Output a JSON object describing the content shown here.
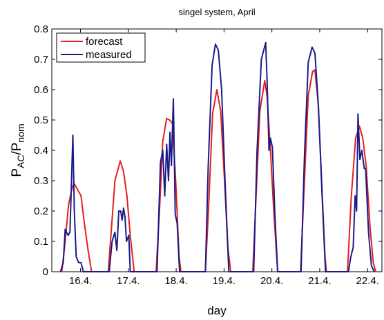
{
  "chart_data": {
    "type": "line",
    "title": "singel system, April",
    "xlabel": "day",
    "ylabel_parts": [
      "P",
      "AC",
      "/P",
      "nom"
    ],
    "xlim": [
      15.4,
      22.3
    ],
    "ylim": [
      0,
      0.8
    ],
    "xticks": [
      {
        "value": 16,
        "label": "16.4."
      },
      {
        "value": 17,
        "label": "17.4."
      },
      {
        "value": 18,
        "label": "18.4."
      },
      {
        "value": 19,
        "label": "19.4."
      },
      {
        "value": 20,
        "label": "20.4."
      },
      {
        "value": 21,
        "label": "21.4."
      },
      {
        "value": 22,
        "label": "22.4."
      }
    ],
    "yticks": [
      0,
      0.1,
      0.2,
      0.3,
      0.4,
      0.5,
      0.6,
      0.7,
      0.8
    ],
    "legend": "upper left",
    "series": [
      {
        "name": "forecast",
        "color": "#e0201b",
        "x": [
          15.61,
          15.68,
          15.75,
          15.83,
          15.87,
          15.94,
          16.01,
          16.08,
          16.16,
          16.23,
          16.58,
          16.65,
          16.72,
          16.83,
          16.9,
          16.97,
          17.04,
          17.12,
          17.58,
          17.65,
          17.72,
          17.8,
          17.86,
          17.92,
          17.99,
          18.06,
          18.1,
          18.61,
          18.68,
          18.76,
          18.85,
          18.93,
          19.01,
          19.08,
          19.14,
          19.6,
          19.67,
          19.75,
          19.85,
          19.9,
          19.97,
          20.04,
          20.12,
          20.6,
          20.68,
          20.76,
          20.85,
          20.9,
          20.97,
          21.04,
          21.11,
          21.14,
          21.58,
          21.66,
          21.75,
          21.83,
          21.9,
          21.97,
          22.05,
          22.12,
          22.17
        ],
        "values": [
          0,
          0.1,
          0.22,
          0.28,
          0.29,
          0.27,
          0.25,
          0.16,
          0.07,
          0,
          0,
          0.15,
          0.3,
          0.365,
          0.33,
          0.25,
          0.12,
          0,
          0,
          0.2,
          0.43,
          0.505,
          0.5,
          0.49,
          0.3,
          0.05,
          0,
          0,
          0.22,
          0.52,
          0.6,
          0.53,
          0.3,
          0.08,
          0,
          0,
          0.25,
          0.53,
          0.63,
          0.58,
          0.4,
          0.2,
          0,
          0,
          0.3,
          0.58,
          0.66,
          0.665,
          0.55,
          0.3,
          0.05,
          0,
          0,
          0.25,
          0.44,
          0.48,
          0.44,
          0.35,
          0.15,
          0.03,
          0
        ]
      },
      {
        "name": "measured",
        "color": "#1a1a8c",
        "x": [
          15.58,
          15.64,
          15.68,
          15.74,
          15.78,
          15.84,
          15.87,
          15.91,
          15.96,
          16.01,
          16.06,
          16.16,
          16.6,
          16.66,
          16.72,
          16.76,
          16.8,
          16.84,
          16.87,
          16.9,
          16.93,
          16.96,
          17.01,
          17.04,
          17.6,
          17.67,
          17.72,
          17.76,
          17.8,
          17.84,
          17.87,
          17.9,
          17.94,
          17.98,
          18.02,
          18.07,
          18.61,
          18.67,
          18.75,
          18.82,
          18.88,
          18.95,
          19.02,
          19.1,
          19.62,
          19.69,
          19.78,
          19.87,
          19.9,
          19.94,
          19.97,
          20.01,
          20.06,
          20.12,
          20.61,
          20.68,
          20.76,
          20.84,
          20.9,
          20.97,
          21.05,
          21.12,
          21.6,
          21.65,
          21.7,
          21.74,
          21.77,
          21.8,
          21.84,
          21.88,
          21.93,
          21.96,
          22.02,
          22.08,
          22.14
        ],
        "values": [
          0,
          0.03,
          0.14,
          0.12,
          0.13,
          0.45,
          0.2,
          0.05,
          0.03,
          0.03,
          0,
          0,
          0,
          0.1,
          0.13,
          0.07,
          0.2,
          0.2,
          0.17,
          0.21,
          0.18,
          0.1,
          0.12,
          0,
          0,
          0.36,
          0.4,
          0.25,
          0.42,
          0.3,
          0.46,
          0.35,
          0.57,
          0.19,
          0.16,
          0,
          0,
          0.35,
          0.68,
          0.75,
          0.73,
          0.6,
          0.3,
          0,
          0,
          0.4,
          0.7,
          0.755,
          0.63,
          0.4,
          0.44,
          0.41,
          0.2,
          0,
          0,
          0.38,
          0.69,
          0.74,
          0.72,
          0.55,
          0.25,
          0,
          0,
          0.05,
          0.08,
          0.25,
          0.2,
          0.52,
          0.37,
          0.4,
          0.34,
          0.34,
          0.13,
          0.02,
          0
        ]
      }
    ]
  }
}
